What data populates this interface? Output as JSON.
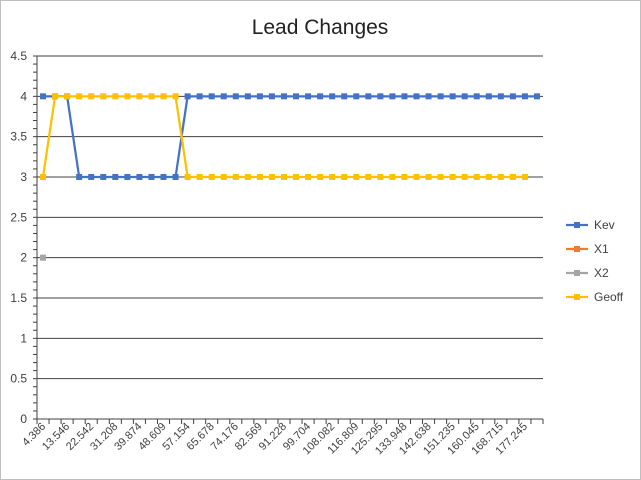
{
  "chart_data": {
    "type": "line",
    "title": "Lead Changes",
    "xlabel": "",
    "ylabel": "",
    "ylim": [
      0,
      4.5
    ],
    "ytick_step": 0.5,
    "ytick_labels": [
      "0",
      "0.5",
      "1",
      "1.5",
      "2",
      "2.5",
      "3",
      "3.5",
      "4",
      "4.5"
    ],
    "grid": true,
    "legend": "right",
    "n_categories": 42,
    "x_labels": [
      "4.386",
      "13.546",
      "22.542",
      "31.208",
      "39.874",
      "48.609",
      "57.154",
      "65.678",
      "74.176",
      "82.569",
      "91.228",
      "99.704",
      "108.082",
      "116.809",
      "125.295",
      "133.948",
      "142.638",
      "151.235",
      "160.045",
      "168.715",
      "177.245"
    ],
    "series": [
      {
        "name": "Kev",
        "color": "#4472C4",
        "values": [
          4,
          4,
          4,
          3,
          3,
          3,
          3,
          3,
          3,
          3,
          3,
          3,
          4,
          4,
          4,
          4,
          4,
          4,
          4,
          4,
          4,
          4,
          4,
          4,
          4,
          4,
          4,
          4,
          4,
          4,
          4,
          4,
          4,
          4,
          4,
          4,
          4,
          4,
          4,
          4,
          4,
          4
        ]
      },
      {
        "name": "X1",
        "color": "#ED7D31",
        "values": []
      },
      {
        "name": "X2",
        "color": "#A5A5A5",
        "values": [
          2
        ]
      },
      {
        "name": "Geoff",
        "color": "#FFC000",
        "values": [
          3,
          4,
          4,
          4,
          4,
          4,
          4,
          4,
          4,
          4,
          4,
          4,
          3,
          3,
          3,
          3,
          3,
          3,
          3,
          3,
          3,
          3,
          3,
          3,
          3,
          3,
          3,
          3,
          3,
          3,
          3,
          3,
          3,
          3,
          3,
          3,
          3,
          3,
          3,
          3,
          3
        ]
      }
    ]
  }
}
